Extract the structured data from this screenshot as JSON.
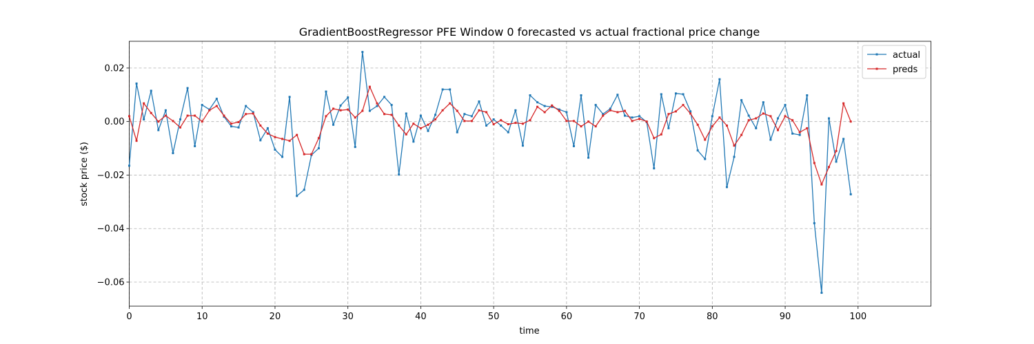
{
  "chart_data": {
    "type": "line",
    "title": "GradientBoostRegressor PFE Window 0 forecasted vs actual fractional price change",
    "xlabel": "time",
    "ylabel": "stock price ($)",
    "xlim": [
      0,
      110
    ],
    "ylim": [
      -0.069,
      0.03
    ],
    "x_ticks": [
      0,
      10,
      20,
      30,
      40,
      50,
      60,
      70,
      80,
      90,
      100
    ],
    "y_ticks": [
      -0.06,
      -0.04,
      -0.02,
      0.0,
      0.02
    ],
    "y_tick_labels": [
      "−0.06",
      "−0.04",
      "−0.02",
      "0.00",
      "0.02"
    ],
    "grid": true,
    "legend_position": "top-right",
    "series": [
      {
        "name": "actual",
        "color": "#1f77b4",
        "values": [
          -0.0165,
          0.0142,
          0.0008,
          0.0115,
          -0.0032,
          0.0042,
          -0.0118,
          0.0008,
          0.0125,
          -0.0092,
          0.0062,
          0.0045,
          0.0085,
          0.0018,
          -0.0018,
          -0.0022,
          0.0058,
          0.0035,
          -0.007,
          -0.0025,
          -0.0105,
          -0.0132,
          0.0092,
          -0.0278,
          -0.0255,
          -0.0125,
          -0.01,
          0.0112,
          -0.0012,
          0.006,
          0.009,
          -0.0095,
          0.026,
          0.004,
          0.0058,
          0.0092,
          0.0062,
          -0.0198,
          0.003,
          -0.0075,
          0.0022,
          -0.0035,
          0.0025,
          0.012,
          0.012,
          -0.004,
          0.0028,
          0.002,
          0.0075,
          -0.0015,
          0.0008,
          -0.0015,
          -0.004,
          0.0042,
          -0.009,
          0.0098,
          0.0072,
          0.0058,
          0.0055,
          0.0045,
          0.0035,
          -0.0092,
          0.0098,
          -0.0135,
          0.0062,
          0.0028,
          0.0048,
          0.01,
          0.0022,
          0.0015,
          0.002,
          -0.0002,
          -0.0175,
          0.0102,
          -0.0025,
          0.0105,
          0.0102,
          0.0038,
          -0.0108,
          -0.014,
          0.002,
          0.0158,
          -0.0245,
          -0.0132,
          0.008,
          0.0022,
          -0.0025,
          0.0072,
          -0.0068,
          0.0012,
          0.0062,
          -0.0045,
          -0.005,
          0.0098,
          -0.038,
          -0.064,
          0.0012,
          -0.015,
          -0.0065,
          -0.0272
        ]
      },
      {
        "name": "preds",
        "color": "#d62728",
        "values": [
          0.002,
          -0.0072,
          0.0068,
          0.0032,
          0.0,
          0.0022,
          0.0002,
          -0.0022,
          0.0022,
          0.0022,
          0.0,
          0.0042,
          0.0058,
          0.0022,
          -0.0008,
          -0.0002,
          0.0028,
          0.003,
          -0.0015,
          -0.0045,
          -0.0058,
          -0.0065,
          -0.0072,
          -0.005,
          -0.0122,
          -0.0122,
          -0.0062,
          0.002,
          0.0048,
          0.0042,
          0.0045,
          0.0015,
          0.004,
          0.013,
          0.0068,
          0.0028,
          0.0025,
          -0.0015,
          -0.0048,
          -0.0008,
          -0.0025,
          -0.0012,
          0.0008,
          0.0042,
          0.0068,
          0.004,
          0.0002,
          0.0002,
          0.0042,
          0.0035,
          -0.001,
          0.0005,
          -0.001,
          -0.0005,
          -0.0008,
          0.0005,
          0.0055,
          0.0035,
          0.006,
          0.004,
          0.0002,
          0.0002,
          -0.0018,
          0.0,
          -0.0018,
          0.0022,
          0.0042,
          0.0035,
          0.004,
          0.0002,
          0.001,
          0.0,
          -0.0062,
          -0.0048,
          0.0028,
          0.0038,
          0.0062,
          0.003,
          -0.0012,
          -0.0068,
          -0.0018,
          0.0015,
          -0.0015,
          -0.009,
          -0.005,
          0.0005,
          0.0012,
          0.003,
          0.002,
          -0.0032,
          0.002,
          0.0005,
          -0.004,
          -0.0025,
          -0.0155,
          -0.0235,
          -0.017,
          -0.011,
          0.0068,
          0.0
        ]
      }
    ]
  }
}
